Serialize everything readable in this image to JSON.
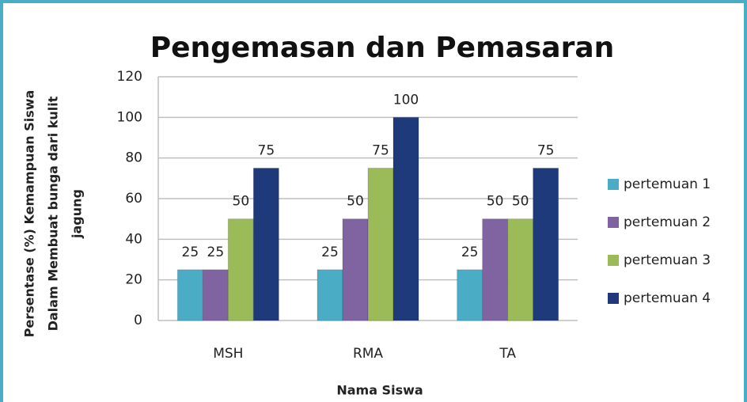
{
  "chart_data": {
    "type": "bar",
    "title": "Pengemasan dan Pemasaran",
    "ylabel": [
      "Persentase (%) Kemampuan Siswa",
      "Dalam Membuat bunga dari kulit",
      "jagung"
    ],
    "xlabel": "Nama Siswa",
    "categories": [
      "MSH",
      "RMA",
      "TA"
    ],
    "series": [
      {
        "name": "pertemuan 1",
        "color": "#4bacc6",
        "values": [
          25,
          25,
          25
        ]
      },
      {
        "name": "pertemuan 2",
        "color": "#8064a2",
        "values": [
          25,
          50,
          50
        ]
      },
      {
        "name": "pertemuan 3",
        "color": "#9bbb59",
        "values": [
          50,
          75,
          50
        ]
      },
      {
        "name": "pertemuan 4",
        "color": "#1f3a7a",
        "values": [
          75,
          100,
          75
        ]
      }
    ],
    "ylim": [
      0,
      120
    ],
    "yticks": [
      0,
      20,
      40,
      60,
      80,
      100,
      120
    ],
    "grid": true,
    "legend": "right"
  }
}
